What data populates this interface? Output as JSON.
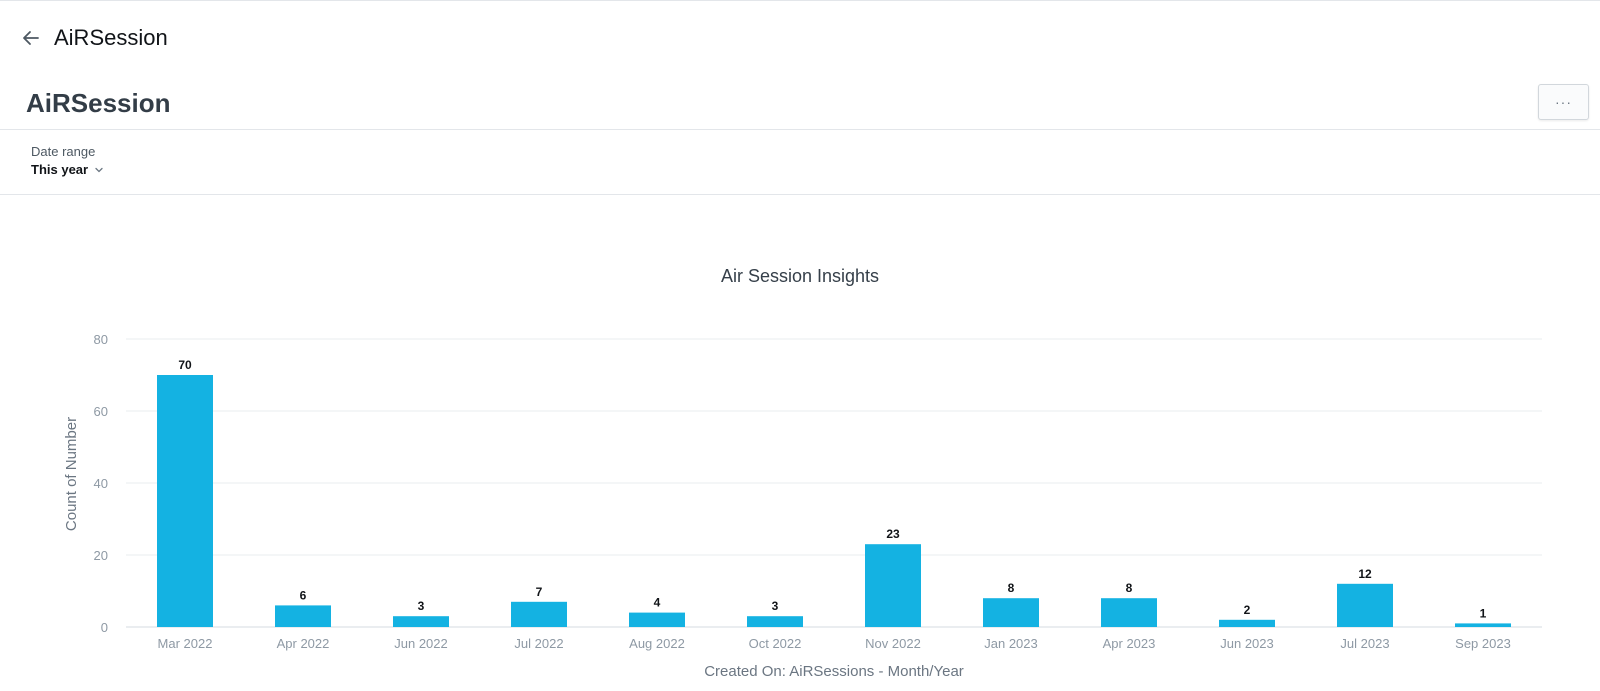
{
  "topbar": {
    "title": "AiRSession",
    "back_icon": "arrow-left-icon"
  },
  "header": {
    "title": "AiRSession",
    "more_label": "···"
  },
  "filter": {
    "label": "Date range",
    "value": "This year",
    "chevron_icon": "chevron-down-icon"
  },
  "colors": {
    "bar": "#14b2e2",
    "grid": "#e9ecef",
    "axis": "#d5dbe0"
  },
  "chart_data": {
    "type": "bar",
    "title": "Air Session Insights",
    "xlabel": "Created On: AiRSessions - Month/Year",
    "ylabel": "Count of Number",
    "ylim": [
      0,
      80
    ],
    "yticks": [
      0,
      20,
      40,
      60,
      80
    ],
    "grid": true,
    "categories": [
      "Mar 2022",
      "Apr 2022",
      "Jun 2022",
      "Jul 2022",
      "Aug 2022",
      "Oct 2022",
      "Nov 2022",
      "Jan 2023",
      "Apr 2023",
      "Jun 2023",
      "Jul 2023",
      "Sep 2023"
    ],
    "values": [
      70,
      6,
      3,
      7,
      4,
      3,
      23,
      8,
      8,
      2,
      12,
      1
    ],
    "data_labels": true
  }
}
